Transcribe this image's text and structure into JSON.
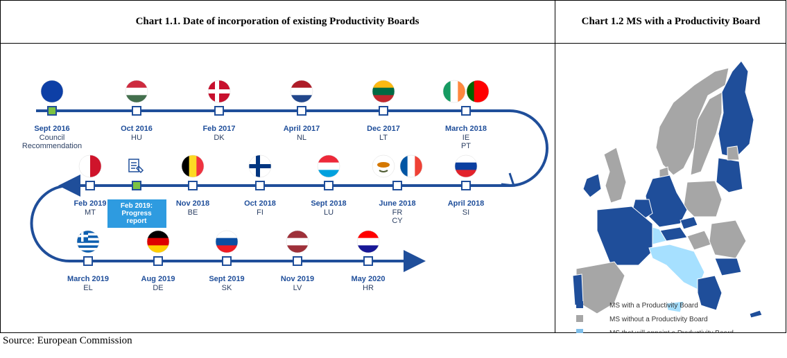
{
  "header": {
    "chart1_title": "Chart 1.1. Date of incorporation of existing Productivity Boards",
    "chart2_title": "Chart 1.2 MS with a Productivity Board"
  },
  "timeline": {
    "events": [
      {
        "date": "Sept 2016",
        "codes": [
          "Council",
          "Recommendation"
        ]
      },
      {
        "date": "Oct 2016",
        "codes": [
          "HU"
        ]
      },
      {
        "date": "Feb 2017",
        "codes": [
          "DK"
        ]
      },
      {
        "date": "April 2017",
        "codes": [
          "NL"
        ]
      },
      {
        "date": "Dec 2017",
        "codes": [
          "LT"
        ]
      },
      {
        "date": "March 2018",
        "codes": [
          "IE",
          "PT"
        ]
      },
      {
        "date": "April 2018",
        "codes": [
          "SI"
        ]
      },
      {
        "date": "June 2018",
        "codes": [
          "FR",
          "CY"
        ]
      },
      {
        "date": "Sept 2018",
        "codes": [
          "LU"
        ]
      },
      {
        "date": "Oct 2018",
        "codes": [
          "FI"
        ]
      },
      {
        "date": "Nov 2018",
        "codes": [
          "BE"
        ]
      },
      {
        "date": "Feb 2019",
        "codes": [
          "MT"
        ]
      },
      {
        "date": "March 2019",
        "codes": [
          "EL"
        ]
      },
      {
        "date": "Aug 2019",
        "codes": [
          "DE"
        ]
      },
      {
        "date": "Sept 2019",
        "codes": [
          "SK"
        ]
      },
      {
        "date": "Nov 2019",
        "codes": [
          "LV"
        ]
      },
      {
        "date": "May 2020",
        "codes": [
          "HR"
        ]
      }
    ],
    "progress_report": [
      "Feb 2019:",
      "Progress",
      "report"
    ]
  },
  "map_legend": [
    "MS with a Productivity Board",
    "MS without a Productivity Board",
    "MS that will appoint a Productivity Board"
  ],
  "source": "Source: European Commission"
}
